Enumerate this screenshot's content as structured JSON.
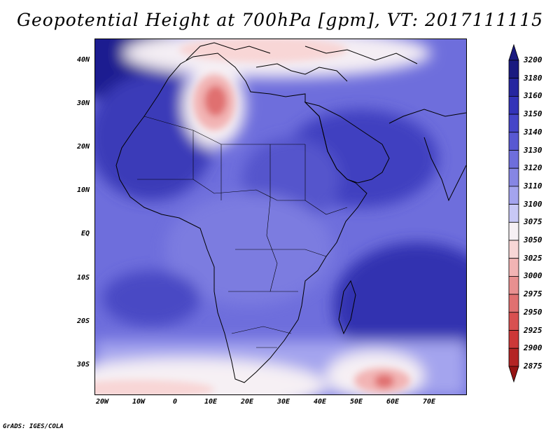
{
  "title": "Geopotential Height at 700hPa [gpm], VT: 2017111115",
  "footer": "GrADS: IGES/COLA",
  "lat_labels": [
    "40N",
    "30N",
    "20N",
    "10N",
    "EQ",
    "10S",
    "20S",
    "30S"
  ],
  "lon_labels": [
    "20W",
    "10W",
    "0",
    "10E",
    "20E",
    "30E",
    "40E",
    "50E",
    "60E",
    "70E"
  ],
  "colorbar": {
    "levels": [
      "3200",
      "3180",
      "3160",
      "3150",
      "3140",
      "3130",
      "3120",
      "3110",
      "3100",
      "3075",
      "3050",
      "3025",
      "3000",
      "2975",
      "2950",
      "2925",
      "2900",
      "2875"
    ],
    "colors": [
      "#1a1a80",
      "#2626a0",
      "#3333b8",
      "#4545c8",
      "#5858d2",
      "#6e6edc",
      "#8686e4",
      "#a4a4ee",
      "#c8c8f6",
      "#f6f0f4",
      "#f8d6d6",
      "#f2b4b4",
      "#e89090",
      "#e07070",
      "#d85050",
      "#cc3838",
      "#b42424",
      "#961414"
    ]
  },
  "map": {
    "region": "Africa and surroundings",
    "domain_lon": [
      -23,
      80
    ],
    "domain_lat": [
      -37,
      45
    ]
  }
}
